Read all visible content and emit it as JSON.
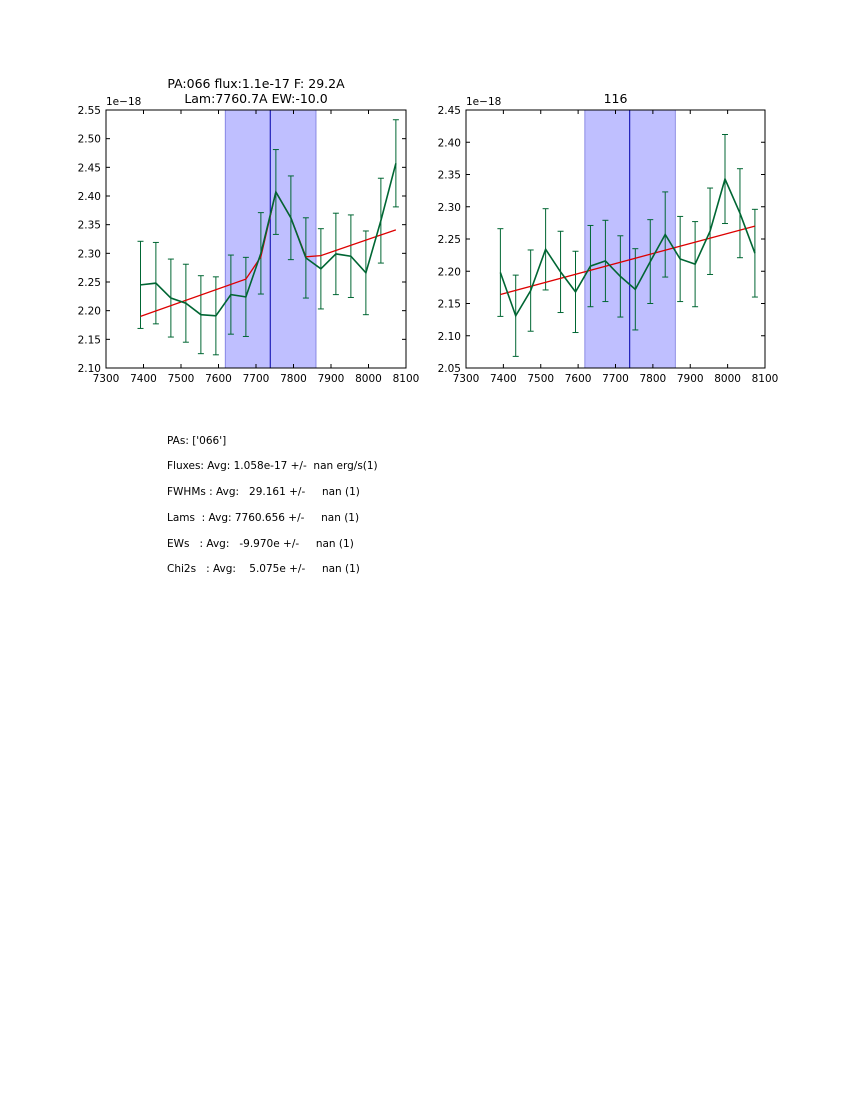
{
  "chart_data": [
    {
      "type": "line",
      "title_lines": [
        "PA:066 flux:1.1e-17 F: 29.2A",
        "Lam:7760.7A EW:-10.0"
      ],
      "offset_label": "1e−18",
      "xlim": [
        7300,
        8100
      ],
      "ylim": [
        2.1,
        2.55
      ],
      "xticks": [
        7300,
        7400,
        7500,
        7600,
        7700,
        7800,
        7900,
        8000,
        8100
      ],
      "yticks": [
        2.1,
        2.15,
        2.2,
        2.25,
        2.3,
        2.35,
        2.4,
        2.45,
        2.5,
        2.55
      ],
      "shaded_region": [
        7618,
        7860
      ],
      "vline": 7738,
      "series": [
        {
          "role": "data",
          "color": "#006633",
          "x": [
            7392,
            7433,
            7473,
            7513,
            7553,
            7593,
            7633,
            7673,
            7713,
            7753,
            7793,
            7833,
            7873,
            7913,
            7953,
            7993,
            8033,
            8073
          ],
          "y": [
            2.245,
            2.248,
            2.222,
            2.213,
            2.193,
            2.191,
            2.228,
            2.224,
            2.3,
            2.407,
            2.362,
            2.292,
            2.273,
            2.299,
            2.295,
            2.266,
            2.357,
            2.457
          ],
          "yerr": [
            0.076,
            0.071,
            0.068,
            0.068,
            0.068,
            0.068,
            0.069,
            0.069,
            0.071,
            0.074,
            0.073,
            0.07,
            0.07,
            0.071,
            0.072,
            0.073,
            0.074,
            0.076
          ]
        },
        {
          "role": "fit",
          "color": "#dd0000",
          "x": [
            7392,
            7673,
            7713,
            7753,
            7793,
            7833,
            7873,
            8073
          ],
          "y": [
            2.19,
            2.255,
            2.294,
            2.407,
            2.362,
            2.294,
            2.296,
            2.341
          ]
        }
      ]
    },
    {
      "type": "line",
      "title_lines": [
        "116"
      ],
      "offset_label": "1e−18",
      "xlim": [
        7300,
        8100
      ],
      "ylim": [
        2.05,
        2.45
      ],
      "xticks": [
        7300,
        7400,
        7500,
        7600,
        7700,
        7800,
        7900,
        8000,
        8100
      ],
      "yticks": [
        2.05,
        2.1,
        2.15,
        2.2,
        2.25,
        2.3,
        2.35,
        2.4,
        2.45
      ],
      "shaded_region": [
        7618,
        7860
      ],
      "vline": 7738,
      "series": [
        {
          "role": "data",
          "color": "#006633",
          "x": [
            7392,
            7433,
            7473,
            7513,
            7553,
            7593,
            7633,
            7673,
            7713,
            7753,
            7793,
            7833,
            7873,
            7913,
            7953,
            7993,
            8033,
            8073
          ],
          "y": [
            2.198,
            2.131,
            2.17,
            2.234,
            2.199,
            2.168,
            2.208,
            2.216,
            2.192,
            2.172,
            2.215,
            2.257,
            2.219,
            2.211,
            2.262,
            2.343,
            2.29,
            2.228
          ],
          "yerr": [
            0.068,
            0.063,
            0.063,
            0.063,
            0.063,
            0.063,
            0.063,
            0.063,
            0.063,
            0.063,
            0.065,
            0.066,
            0.066,
            0.066,
            0.067,
            0.069,
            0.069,
            0.068
          ]
        },
        {
          "role": "fit",
          "color": "#dd0000",
          "x": [
            7392,
            8073
          ],
          "y": [
            2.164,
            2.27
          ]
        }
      ]
    }
  ],
  "summary": {
    "pas": "PAs: ['066']",
    "fluxes": "Fluxes: Avg: 1.058e-17 +/-  nan erg/s(1)",
    "fwhms": "FWHMs : Avg:   29.161 +/-     nan (1)",
    "lams": "Lams  : Avg: 7760.656 +/-     nan (1)",
    "ews": "EWs   : Avg:   -9.970e +/-     nan (1)",
    "chi2s": "Chi2s   : Avg:    5.075e +/-     nan (1)"
  }
}
